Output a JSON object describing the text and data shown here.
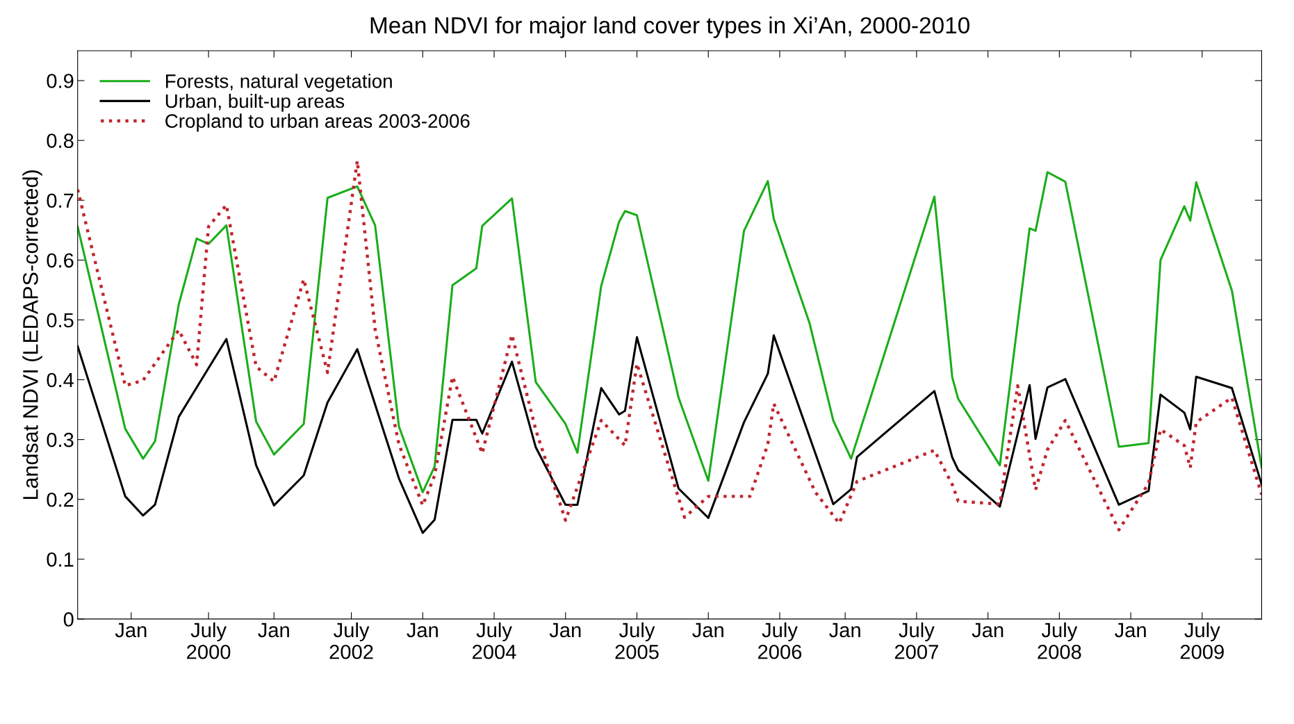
{
  "chart_data": {
    "type": "line",
    "title": "Mean NDVI for major land cover types in Xi’An, 2000-2010",
    "ylabel": "Landsat NDVI (LEDAPS-corrected)",
    "categories": [
      null,
      null,
      null,
      null,
      null,
      null,
      null,
      null,
      null,
      "Jan",
      null,
      null,
      null,
      null,
      null,
      null,
      null,
      null,
      null,
      null,
      null,
      null,
      "July\n2000",
      null,
      null,
      null,
      null,
      null,
      null,
      null,
      null,
      null,
      null,
      "Jan",
      null,
      null,
      null,
      null,
      null,
      null,
      null,
      null,
      null,
      null,
      null,
      null,
      "July\n2002",
      null,
      null,
      null,
      null,
      null,
      null,
      null,
      null,
      null,
      null,
      null,
      "Jan",
      null,
      null,
      null,
      null,
      null,
      null,
      null,
      null,
      null,
      null,
      null,
      "July\n2004",
      null,
      null,
      null,
      null,
      null,
      null,
      null,
      null,
      null,
      null,
      null,
      "Jan",
      null,
      null,
      null,
      null,
      null,
      null,
      null,
      null,
      null,
      null,
      null,
      "July\n2005",
      null,
      null,
      null,
      null,
      null,
      null,
      null,
      null,
      null,
      null,
      null,
      "Jan",
      null,
      null,
      null,
      null,
      null,
      null,
      null,
      null,
      null,
      null,
      null,
      "July\n2006",
      null,
      null,
      null,
      null,
      null,
      null,
      null,
      null,
      null,
      null,
      "Jan",
      null,
      null,
      null,
      null,
      null,
      null,
      null,
      null,
      null,
      null,
      null,
      "July\n2007",
      null,
      null,
      null,
      null,
      null,
      null,
      null,
      null,
      null,
      null,
      null,
      "Jan",
      null,
      null,
      null,
      null,
      null,
      null,
      null,
      null,
      null,
      null,
      null,
      "July\n2008",
      null,
      null,
      null,
      null,
      null,
      null,
      null,
      null,
      null,
      null,
      null,
      "Jan",
      null,
      null,
      null,
      null,
      null,
      null,
      null,
      null,
      null,
      null,
      null,
      "July\n2009",
      null,
      null,
      null,
      null,
      null,
      null,
      null,
      null,
      null,
      null
    ],
    "ylim": [
      0,
      0.95
    ],
    "yticks": [
      0,
      0.1,
      0.2,
      0.3,
      0.4,
      0.5,
      0.6,
      0.7,
      0.8,
      0.9
    ],
    "grid": false,
    "legend": "top left",
    "marker": "none",
    "series": [
      {
        "name": "Forests, natural vegetation",
        "color": "#1aad1a",
        "line_style": "solid",
        "values": [
          0.656,
          null,
          null,
          null,
          null,
          null,
          null,
          null,
          0.318,
          null,
          null,
          0.268,
          null,
          0.297,
          null,
          null,
          null,
          0.526,
          null,
          null,
          0.636,
          null,
          0.627,
          null,
          null,
          0.658,
          null,
          null,
          null,
          null,
          0.33,
          null,
          null,
          0.275,
          null,
          null,
          null,
          null,
          0.326,
          null,
          null,
          null,
          0.704,
          null,
          null,
          null,
          null,
          0.723,
          null,
          null,
          0.658,
          null,
          null,
          null,
          0.322,
          null,
          null,
          null,
          0.212,
          null,
          0.255,
          null,
          null,
          0.558,
          null,
          null,
          null,
          0.586,
          0.657,
          null,
          null,
          null,
          null,
          0.703,
          null,
          null,
          null,
          0.396,
          null,
          null,
          null,
          null,
          0.326,
          null,
          0.278,
          null,
          null,
          null,
          0.557,
          null,
          null,
          0.664,
          0.682,
          null,
          0.675,
          null,
          null,
          null,
          null,
          null,
          null,
          0.37,
          null,
          null,
          null,
          null,
          0.231,
          null,
          null,
          null,
          null,
          null,
          0.649,
          null,
          null,
          null,
          0.732,
          0.669,
          null,
          null,
          null,
          null,
          null,
          0.495,
          null,
          null,
          null,
          0.332,
          null,
          null,
          0.268,
          null,
          null,
          null,
          null,
          null,
          null,
          null,
          null,
          null,
          null,
          null,
          null,
          null,
          0.706,
          null,
          null,
          0.404,
          0.368,
          null,
          null,
          null,
          null,
          null,
          null,
          0.257,
          null,
          null,
          null,
          null,
          0.653,
          0.649,
          null,
          0.747,
          null,
          null,
          0.731,
          null,
          null,
          null,
          null,
          null,
          null,
          null,
          null,
          0.288,
          null,
          null,
          null,
          null,
          0.294,
          null,
          0.6,
          null,
          null,
          null,
          0.69,
          0.666,
          0.73,
          null,
          null,
          null,
          null,
          null,
          0.549,
          null,
          null,
          null,
          null,
          0.253
        ]
      },
      {
        "name": "Urban, built-up areas",
        "color": "#000000",
        "line_style": "solid",
        "values": [
          0.456,
          null,
          null,
          null,
          null,
          null,
          null,
          null,
          0.205,
          null,
          null,
          0.173,
          null,
          0.191,
          null,
          null,
          null,
          0.338,
          null,
          null,
          0.387,
          null,
          null,
          null,
          null,
          0.468,
          null,
          null,
          null,
          null,
          0.257,
          null,
          null,
          0.19,
          null,
          null,
          null,
          null,
          0.24,
          null,
          null,
          null,
          0.362,
          null,
          null,
          null,
          null,
          0.451,
          null,
          null,
          null,
          null,
          null,
          null,
          0.235,
          null,
          null,
          null,
          0.144,
          null,
          0.166,
          null,
          null,
          0.333,
          null,
          null,
          null,
          0.333,
          0.31,
          null,
          null,
          null,
          null,
          0.43,
          null,
          null,
          null,
          0.287,
          null,
          null,
          null,
          null,
          0.191,
          null,
          0.191,
          null,
          null,
          null,
          0.386,
          null,
          null,
          0.342,
          0.348,
          null,
          0.471,
          null,
          null,
          null,
          null,
          null,
          null,
          0.218,
          null,
          null,
          null,
          null,
          0.169,
          null,
          null,
          null,
          null,
          null,
          0.329,
          null,
          null,
          null,
          0.41,
          0.474,
          null,
          null,
          null,
          null,
          null,
          null,
          null,
          null,
          null,
          0.192,
          null,
          null,
          0.217,
          0.271,
          null,
          null,
          null,
          null,
          null,
          null,
          null,
          null,
          null,
          null,
          null,
          null,
          0.381,
          null,
          null,
          0.27,
          0.249,
          null,
          null,
          null,
          null,
          null,
          null,
          0.188,
          null,
          null,
          null,
          null,
          0.391,
          0.301,
          null,
          0.387,
          null,
          null,
          0.401,
          null,
          null,
          null,
          null,
          null,
          null,
          null,
          null,
          0.191,
          null,
          null,
          null,
          null,
          0.214,
          null,
          0.375,
          null,
          null,
          null,
          0.345,
          0.317,
          0.405,
          null,
          null,
          null,
          null,
          null,
          0.386,
          null,
          null,
          null,
          null,
          0.225
        ]
      },
      {
        "name": "Cropland to urban areas 2003-2006",
        "color": "#c0262d",
        "line_style": "dotted",
        "values": [
          0.718,
          null,
          null,
          null,
          null,
          null,
          null,
          null,
          0.39,
          null,
          null,
          0.399,
          null,
          null,
          null,
          null,
          null,
          0.483,
          null,
          null,
          0.425,
          null,
          0.656,
          null,
          null,
          0.692,
          null,
          null,
          null,
          null,
          0.422,
          null,
          null,
          0.397,
          null,
          null,
          null,
          null,
          0.568,
          null,
          null,
          null,
          0.412,
          null,
          null,
          null,
          null,
          0.766,
          null,
          null,
          0.484,
          null,
          null,
          null,
          0.292,
          null,
          null,
          null,
          0.19,
          null,
          0.24,
          null,
          null,
          0.405,
          null,
          null,
          null,
          null,
          0.277,
          null,
          null,
          null,
          null,
          0.475,
          null,
          null,
          null,
          0.316,
          null,
          null,
          null,
          null,
          0.165,
          null,
          null,
          null,
          null,
          null,
          0.332,
          null,
          null,
          null,
          0.29,
          null,
          0.427,
          null,
          null,
          null,
          null,
          null,
          null,
          null,
          0.17,
          null,
          null,
          null,
          0.205,
          null,
          null,
          null,
          null,
          null,
          null,
          0.205,
          null,
          null,
          0.292,
          0.36,
          null,
          null,
          null,
          null,
          null,
          null,
          0.212,
          null,
          null,
          null,
          0.16,
          null,
          null,
          0.23,
          null,
          null,
          null,
          null,
          null,
          null,
          null,
          null,
          null,
          null,
          null,
          null,
          0.282,
          null,
          null,
          0.225,
          0.197,
          null,
          null,
          null,
          null,
          null,
          null,
          0.192,
          null,
          null,
          0.39,
          null,
          null,
          0.216,
          null,
          0.283,
          null,
          null,
          0.332,
          null,
          null,
          null,
          null,
          null,
          null,
          null,
          null,
          0.149,
          null,
          null,
          null,
          null,
          0.227,
          null,
          0.317,
          null,
          null,
          null,
          0.29,
          0.253,
          0.329,
          null,
          null,
          null,
          null,
          null,
          0.37,
          null,
          null,
          null,
          null,
          0.208
        ]
      }
    ]
  }
}
